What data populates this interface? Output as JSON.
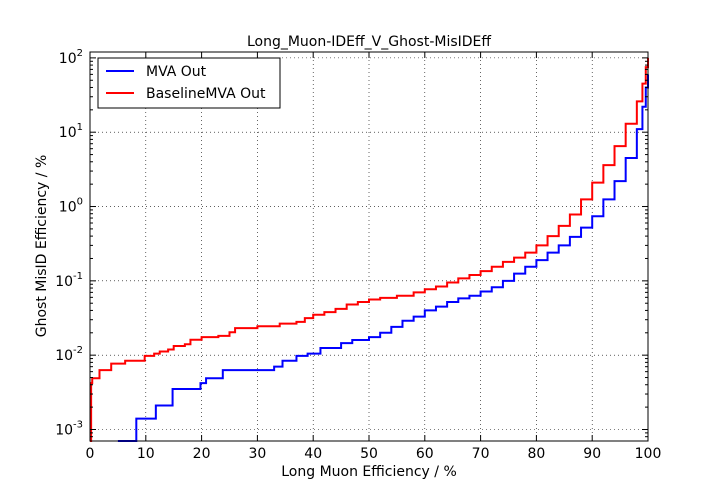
{
  "chart_data": {
    "type": "line",
    "title": "Long_Muon-IDEff_V_Ghost-MisIDEff",
    "xlabel": "Long Muon Efficiency / %",
    "ylabel": "Ghost MisID Efficiency / %",
    "xlim": [
      0,
      100
    ],
    "ylim": [
      0.0007,
      120
    ],
    "yscale": "log",
    "grid": true,
    "legend_position": "top-left",
    "x_ticks": [
      {
        "value": 0,
        "label": "0"
      },
      {
        "value": 10,
        "label": "10"
      },
      {
        "value": 20,
        "label": "20"
      },
      {
        "value": 30,
        "label": "30"
      },
      {
        "value": 40,
        "label": "40"
      },
      {
        "value": 50,
        "label": "50"
      },
      {
        "value": 60,
        "label": "60"
      },
      {
        "value": 70,
        "label": "70"
      },
      {
        "value": 80,
        "label": "80"
      },
      {
        "value": 90,
        "label": "90"
      },
      {
        "value": 100,
        "label": "100"
      }
    ],
    "y_ticks": [
      {
        "value": 0.001,
        "base": "10",
        "exp": "-3"
      },
      {
        "value": 0.01,
        "base": "10",
        "exp": "-2"
      },
      {
        "value": 0.1,
        "base": "10",
        "exp": "-1"
      },
      {
        "value": 1,
        "base": "10",
        "exp": "0"
      },
      {
        "value": 10,
        "base": "10",
        "exp": "1"
      },
      {
        "value": 100,
        "base": "10",
        "exp": "2"
      }
    ],
    "series": [
      {
        "name": "MVA Out",
        "color": "#0000ff",
        "step": true,
        "points": [
          [
            5,
            0.0007
          ],
          [
            8,
            0.0007
          ],
          [
            8.3,
            0.0014
          ],
          [
            11.5,
            0.0014
          ],
          [
            11.8,
            0.0021
          ],
          [
            14.5,
            0.0021
          ],
          [
            14.8,
            0.0035
          ],
          [
            19.5,
            0.0035
          ],
          [
            19.8,
            0.0042
          ],
          [
            20.5,
            0.0042
          ],
          [
            20.8,
            0.0049
          ],
          [
            23.5,
            0.0049
          ],
          [
            23.8,
            0.0063
          ],
          [
            32.5,
            0.0063
          ],
          [
            33,
            0.007
          ],
          [
            34.5,
            0.0084
          ],
          [
            36,
            0.0084
          ],
          [
            37,
            0.0098
          ],
          [
            38.5,
            0.0098
          ],
          [
            39,
            0.0105
          ],
          [
            41,
            0.0105
          ],
          [
            41.3,
            0.0125
          ],
          [
            45,
            0.0145
          ],
          [
            47,
            0.016
          ],
          [
            50,
            0.0175
          ],
          [
            52,
            0.02
          ],
          [
            54,
            0.024
          ],
          [
            56,
            0.029
          ],
          [
            58,
            0.033
          ],
          [
            60,
            0.04
          ],
          [
            62,
            0.045
          ],
          [
            64,
            0.052
          ],
          [
            66,
            0.058
          ],
          [
            68,
            0.063
          ],
          [
            70,
            0.072
          ],
          [
            72,
            0.082
          ],
          [
            74,
            0.1
          ],
          [
            76,
            0.125
          ],
          [
            78,
            0.155
          ],
          [
            80,
            0.19
          ],
          [
            82,
            0.24
          ],
          [
            84,
            0.3
          ],
          [
            86,
            0.39
          ],
          [
            88,
            0.52
          ],
          [
            90,
            0.74
          ],
          [
            92,
            1.25
          ],
          [
            94,
            2.2
          ],
          [
            96,
            4.5
          ],
          [
            98,
            11
          ],
          [
            99,
            22
          ],
          [
            99.6,
            40
          ],
          [
            100,
            60
          ]
        ]
      },
      {
        "name": "BaselineMVA Out",
        "color": "#ff0000",
        "step": true,
        "points": [
          [
            0,
            0.0007
          ],
          [
            0.2,
            0.0042
          ],
          [
            0.4,
            0.0049
          ],
          [
            1.5,
            0.0049
          ],
          [
            1.7,
            0.0063
          ],
          [
            3.5,
            0.0063
          ],
          [
            3.8,
            0.0077
          ],
          [
            6,
            0.0077
          ],
          [
            6.3,
            0.0084
          ],
          [
            9.5,
            0.0084
          ],
          [
            9.8,
            0.0098
          ],
          [
            11.5,
            0.0105
          ],
          [
            12.5,
            0.0112
          ],
          [
            14,
            0.0119
          ],
          [
            15,
            0.0133
          ],
          [
            17,
            0.014
          ],
          [
            18,
            0.0161
          ],
          [
            20,
            0.0175
          ],
          [
            23,
            0.0182
          ],
          [
            25,
            0.0203
          ],
          [
            26,
            0.0231
          ],
          [
            30,
            0.0245
          ],
          [
            34,
            0.0266
          ],
          [
            37,
            0.028
          ],
          [
            38.5,
            0.0315
          ],
          [
            40,
            0.035
          ],
          [
            42,
            0.038
          ],
          [
            44,
            0.042
          ],
          [
            46,
            0.048
          ],
          [
            48,
            0.052
          ],
          [
            50,
            0.056
          ],
          [
            52,
            0.059
          ],
          [
            55,
            0.063
          ],
          [
            58,
            0.07
          ],
          [
            60,
            0.077
          ],
          [
            62,
            0.084
          ],
          [
            64,
            0.095
          ],
          [
            66,
            0.108
          ],
          [
            68,
            0.12
          ],
          [
            70,
            0.135
          ],
          [
            72,
            0.155
          ],
          [
            74,
            0.18
          ],
          [
            76,
            0.205
          ],
          [
            78,
            0.24
          ],
          [
            80,
            0.3
          ],
          [
            82,
            0.4
          ],
          [
            84,
            0.55
          ],
          [
            86,
            0.78
          ],
          [
            88,
            1.25
          ],
          [
            90,
            2.1
          ],
          [
            92,
            3.6
          ],
          [
            94,
            6.5
          ],
          [
            96,
            13
          ],
          [
            98,
            26
          ],
          [
            99,
            45
          ],
          [
            99.6,
            75
          ],
          [
            100,
            100
          ]
        ]
      }
    ]
  }
}
